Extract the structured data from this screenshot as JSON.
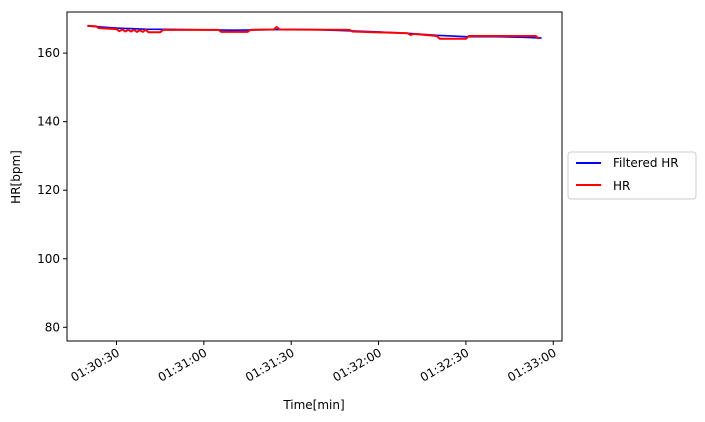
{
  "chart_data": {
    "type": "line",
    "xlabel": "Time[min]",
    "ylabel": "HR[bpm]",
    "xlim": [
      "01:30:13",
      "01:33:03"
    ],
    "ylim": [
      76,
      172
    ],
    "x_ticks": [
      "01:30:30",
      "01:31:00",
      "01:31:30",
      "01:32:00",
      "01:32:30",
      "01:33:00"
    ],
    "y_ticks": [
      80,
      100,
      120,
      140,
      160
    ],
    "grid": false,
    "legend": {
      "placement": "outside-right",
      "entries": [
        "Filtered HR",
        "HR"
      ]
    },
    "series": [
      {
        "name": "Filtered HR",
        "color": "#0000ff",
        "points": [
          [
            "01:30:20",
            167.9
          ],
          [
            "01:30:30",
            167.3
          ],
          [
            "01:30:40",
            167.0
          ],
          [
            "01:30:50",
            166.9
          ],
          [
            "01:31:00",
            166.8
          ],
          [
            "01:31:10",
            166.7
          ],
          [
            "01:31:20",
            166.8
          ],
          [
            "01:31:30",
            166.9
          ],
          [
            "01:31:40",
            166.8
          ],
          [
            "01:31:50",
            166.5
          ],
          [
            "01:32:00",
            166.2
          ],
          [
            "01:32:10",
            165.8
          ],
          [
            "01:32:20",
            165.2
          ],
          [
            "01:32:30",
            164.8
          ],
          [
            "01:32:40",
            164.8
          ],
          [
            "01:32:50",
            164.6
          ],
          [
            "01:32:56",
            164.4
          ]
        ]
      },
      {
        "name": "HR",
        "color": "#ff0000",
        "points": [
          [
            "01:30:20",
            168.0
          ],
          [
            "01:30:23",
            167.8
          ],
          [
            "01:30:24",
            167.3
          ],
          [
            "01:30:30",
            167.0
          ],
          [
            "01:30:31",
            166.4
          ],
          [
            "01:30:32",
            166.9
          ],
          [
            "01:30:33",
            166.3
          ],
          [
            "01:30:34",
            166.8
          ],
          [
            "01:30:35",
            166.3
          ],
          [
            "01:30:36",
            166.8
          ],
          [
            "01:30:37",
            166.2
          ],
          [
            "01:30:38",
            166.7
          ],
          [
            "01:30:39",
            166.2
          ],
          [
            "01:30:40",
            166.8
          ],
          [
            "01:30:41",
            166.1
          ],
          [
            "01:30:45",
            166.1
          ],
          [
            "01:30:46",
            166.8
          ],
          [
            "01:31:05",
            166.8
          ],
          [
            "01:31:06",
            166.2
          ],
          [
            "01:31:15",
            166.2
          ],
          [
            "01:31:16",
            166.8
          ],
          [
            "01:31:24",
            166.9
          ],
          [
            "01:31:25",
            167.6
          ],
          [
            "01:31:26",
            166.9
          ],
          [
            "01:31:50",
            166.8
          ],
          [
            "01:31:51",
            166.3
          ],
          [
            "01:32:10",
            165.8
          ],
          [
            "01:32:11",
            165.3
          ],
          [
            "01:32:12",
            165.6
          ],
          [
            "01:32:20",
            165.0
          ],
          [
            "01:32:21",
            164.2
          ],
          [
            "01:32:30",
            164.2
          ],
          [
            "01:32:31",
            165.0
          ],
          [
            "01:32:54",
            165.0
          ],
          [
            "01:32:55",
            164.2
          ]
        ]
      }
    ]
  }
}
